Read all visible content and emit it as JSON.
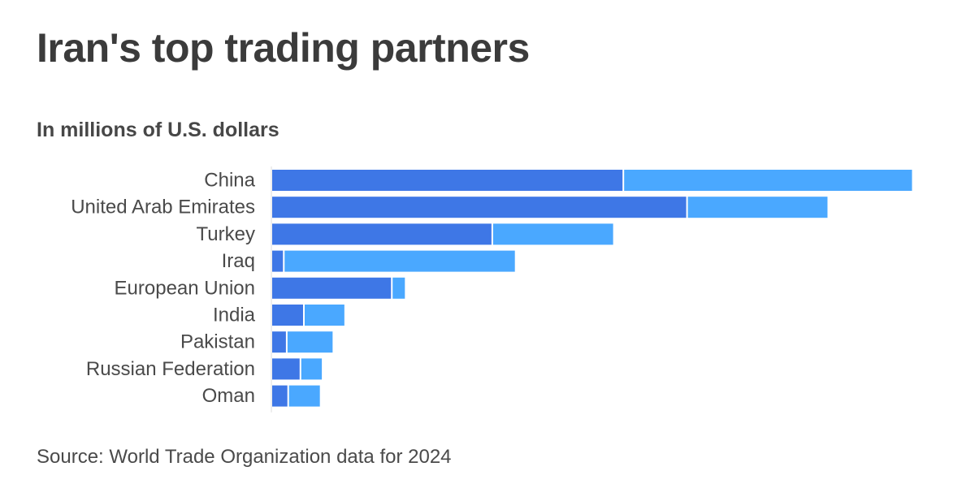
{
  "title": "Iran's top trading partners",
  "subtitle": "In millions of U.S. dollars",
  "source": "Source: World Trade Organization data for 2024",
  "colors": {
    "series_1": "#3e77e6",
    "series_2": "#4aa8ff",
    "axis": "#dddddd"
  },
  "chart_data": {
    "type": "bar",
    "orientation": "horizontal",
    "stacked": true,
    "categories": [
      "China",
      "United Arab Emirates",
      "Turkey",
      "Iraq",
      "European Union",
      "India",
      "Pakistan",
      "Russian Federation",
      "Oman"
    ],
    "series": [
      {
        "values": [
          14300,
          16900,
          8950,
          440,
          4850,
          1260,
          560,
          1120,
          620
        ]
      },
      {
        "values": [
          11750,
          5700,
          4900,
          9400,
          500,
          1620,
          1840,
          840,
          1260
        ]
      }
    ],
    "xlim": [
      0,
      26200
    ],
    "grid": false,
    "legend": "none"
  }
}
